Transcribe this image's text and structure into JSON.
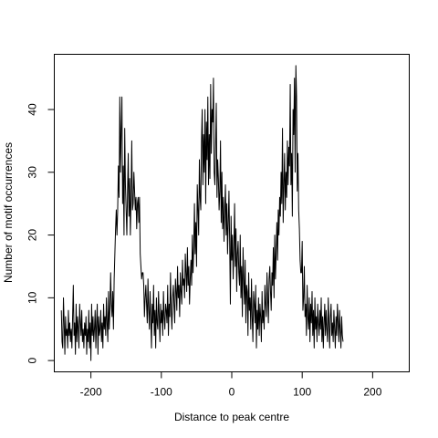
{
  "chart_data": {
    "type": "line",
    "title": "",
    "xlabel": "Distance to peak centre",
    "ylabel": "Number of motif occurrences",
    "xlim": [
      -252,
      252
    ],
    "ylim": [
      -1.8,
      48.8
    ],
    "xticks": [
      -200,
      -100,
      0,
      100,
      200
    ],
    "yticks": [
      0,
      10,
      20,
      30,
      40
    ],
    "xtick_labels": [
      "-200",
      "-100",
      "0",
      "100",
      "200"
    ],
    "ytick_labels": [
      "0",
      "10",
      "20",
      "30",
      "40"
    ],
    "grid": false,
    "legend": "none",
    "series": [
      {
        "x_start": -242,
        "x_step": 1,
        "values": [
          8,
          3,
          2,
          10,
          6,
          1,
          7,
          4,
          5,
          2,
          8,
          4,
          6,
          3,
          5,
          2,
          7,
          12,
          4,
          6,
          1,
          9,
          3,
          7,
          5,
          2,
          9,
          6,
          4,
          8,
          3,
          5,
          2,
          6,
          4,
          7,
          1,
          5,
          3,
          8,
          2,
          6,
          0,
          9,
          4,
          7,
          3,
          5,
          8,
          2,
          6,
          9,
          1,
          7,
          4,
          5,
          8,
          3,
          6,
          2,
          9,
          5,
          7,
          4,
          10,
          6,
          3,
          11,
          5,
          8,
          14,
          9,
          7,
          11,
          5,
          13,
          17,
          21,
          24,
          20,
          24,
          31,
          26,
          42,
          30,
          37,
          42,
          25,
          31,
          20,
          37,
          28,
          24,
          20,
          27,
          33,
          23,
          29,
          20,
          26,
          35,
          24,
          25,
          30,
          27,
          24,
          26,
          21,
          25,
          26,
          22,
          26,
          17,
          15,
          13,
          14,
          14,
          12,
          7,
          10,
          12,
          9,
          6,
          13,
          8,
          5,
          11,
          7,
          2,
          9,
          6,
          12,
          4,
          8,
          2,
          10,
          6,
          5,
          11,
          7,
          3,
          9,
          6,
          8,
          4,
          11,
          7,
          5,
          9,
          8,
          6,
          12,
          4,
          9,
          7,
          14,
          8,
          5,
          10,
          12,
          9,
          6,
          13,
          11,
          8,
          15,
          10,
          12,
          7,
          14,
          11,
          9,
          16,
          12,
          13,
          10,
          17,
          14,
          11,
          18,
          12,
          15,
          9,
          13,
          16,
          12,
          20,
          14,
          18,
          25,
          17,
          22,
          15,
          28,
          24,
          20,
          32,
          26,
          24,
          35,
          40,
          28,
          36,
          30,
          40,
          25,
          38,
          32,
          42,
          28,
          36,
          29,
          44,
          33,
          40,
          38,
          45,
          30,
          28,
          34,
          41,
          26,
          32,
          29,
          24,
          27,
          35,
          22,
          30,
          21,
          26,
          19,
          24,
          28,
          20,
          25,
          17,
          22,
          27,
          19,
          9,
          23,
          16,
          20,
          13,
          18,
          25,
          15,
          21,
          11,
          17,
          19,
          14,
          12,
          20,
          10,
          15,
          7,
          18,
          13,
          9,
          16,
          6,
          12,
          11,
          4,
          14,
          8,
          10,
          5,
          13,
          7,
          3,
          11,
          9,
          6,
          12,
          2,
          8,
          5,
          10,
          4,
          9,
          7,
          3,
          11,
          6,
          8,
          5,
          12,
          9,
          7,
          14,
          10,
          6,
          13,
          15,
          11,
          8,
          14,
          12,
          18,
          10,
          20,
          13,
          17,
          22,
          16,
          24,
          20,
          26,
          23,
          30,
          25,
          37,
          22,
          28,
          33,
          24,
          30,
          26,
          35,
          28,
          34,
          31,
          44,
          28,
          33,
          23,
          40,
          36,
          45,
          30,
          47,
          42,
          27,
          33,
          24,
          21,
          16,
          14,
          14,
          19,
          8,
          10,
          15,
          7,
          9,
          4,
          12,
          7,
          5,
          10,
          3,
          9,
          6,
          11,
          4,
          8,
          2,
          10,
          5,
          7,
          3,
          9,
          6,
          4,
          8,
          5,
          10,
          3,
          7,
          2,
          6,
          9,
          4,
          8,
          5,
          3,
          10,
          6,
          2,
          7,
          9,
          4,
          6,
          3,
          8,
          5,
          2,
          7,
          4,
          9,
          6,
          3,
          8,
          5,
          2,
          7,
          4,
          3
        ]
      }
    ]
  }
}
